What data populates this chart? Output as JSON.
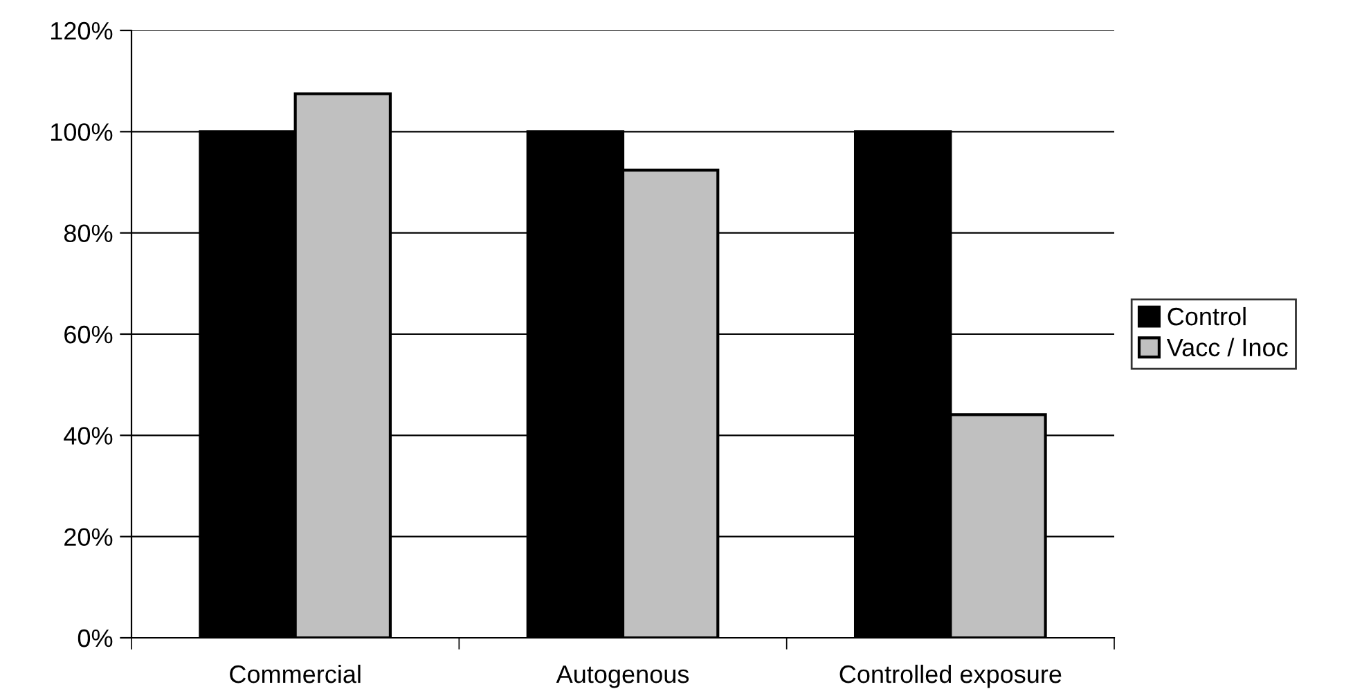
{
  "chart_data": {
    "type": "bar",
    "categories": [
      "Commercial",
      "Autogenous",
      "Controlled exposure"
    ],
    "series": [
      {
        "name": "Control",
        "color": "#000000",
        "values": [
          100,
          100,
          100
        ]
      },
      {
        "name": "Vacc / Inoc",
        "color": "#c0c0c0",
        "values": [
          107.5,
          92.4,
          44.1
        ]
      }
    ],
    "ylim": [
      0,
      120
    ],
    "yticks": [
      {
        "value": 0,
        "label": "0%"
      },
      {
        "value": 20,
        "label": "20%"
      },
      {
        "value": 40,
        "label": "40%"
      },
      {
        "value": 60,
        "label": "60%"
      },
      {
        "value": 80,
        "label": "80%"
      },
      {
        "value": 100,
        "label": "100%"
      },
      {
        "value": 120,
        "label": "120%"
      }
    ],
    "grid": "y",
    "legend": "right"
  }
}
